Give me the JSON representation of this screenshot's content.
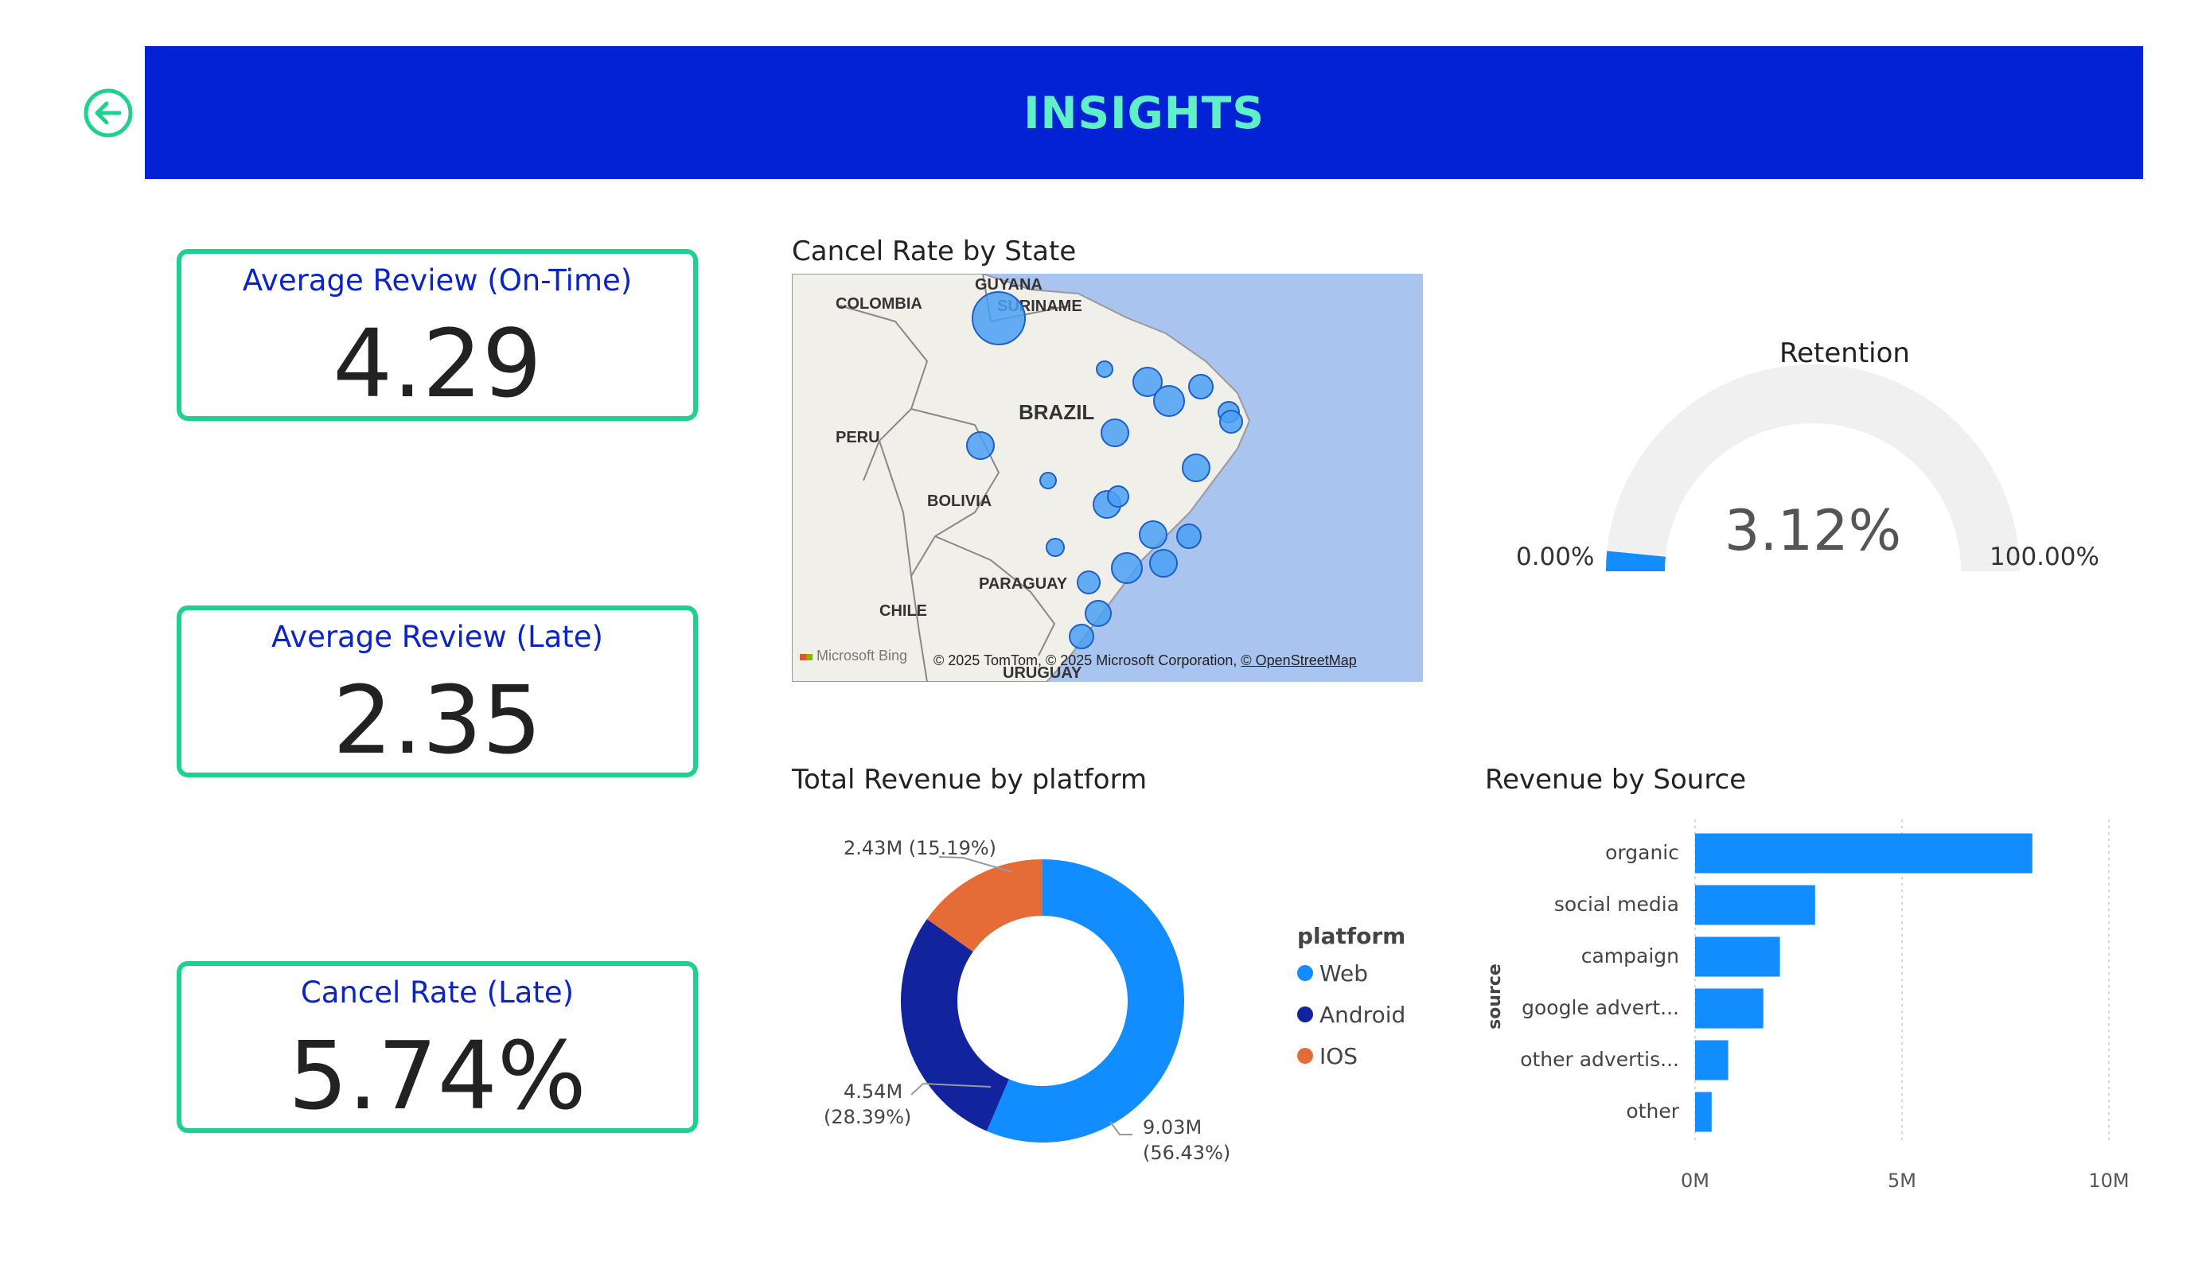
{
  "header": {
    "title": "INSIGHTS",
    "back_icon": "arrow-left-circle-icon",
    "accent_color": "#5ff0c8",
    "bg_color": "#0222d3"
  },
  "cards": [
    {
      "title": "Average Review (On-Time)",
      "value": "4.29"
    },
    {
      "title": "Average Review (Late)",
      "value": "2.35"
    },
    {
      "title": "Cancel Rate (Late)",
      "value": "5.74%"
    }
  ],
  "map": {
    "title": "Cancel Rate by State",
    "labels": [
      "GUYANA",
      "SURINAME",
      "COLOMBIA",
      "BRAZIL",
      "PERU",
      "BOLIVIA",
      "PARAGUAY",
      "CHILE",
      "URUGUAY"
    ],
    "attribution": "© 2025 TomTom, © 2025 Microsoft Corporation,",
    "attribution_link": "© OpenStreetMap",
    "logo": "Microsoft Bing",
    "bubble_color": "#4aa0f5"
  },
  "gauge": {
    "title": "Retention",
    "value_label": "3.12%",
    "value": 3.12,
    "min_label": "0.00%",
    "max_label": "100.00%",
    "min": 0,
    "max": 100,
    "fill_color": "#118dff",
    "track_color": "#f0f0f0"
  },
  "donut": {
    "title": "Total Revenue by platform",
    "legend_title": "platform",
    "slices": [
      {
        "name": "Web",
        "value": 9.03,
        "pct": 56.43,
        "label": "9.03M",
        "pct_label": "(56.43%)",
        "color": "#118dff"
      },
      {
        "name": "Android",
        "value": 4.54,
        "pct": 28.39,
        "label": "4.54M",
        "pct_label": "(28.39%)",
        "color": "#12239e"
      },
      {
        "name": "IOS",
        "value": 2.43,
        "pct": 15.19,
        "label": "2.43M (15.19%)",
        "pct_label": "",
        "color": "#e66c37"
      }
    ]
  },
  "chart_data": {
    "type": "bar",
    "title": "Revenue by Source",
    "xlabel": "",
    "ylabel": "source",
    "categories": [
      "organic",
      "social media",
      "campaign",
      "google advert...",
      "other advertis...",
      "other"
    ],
    "values": [
      8.15,
      2.9,
      2.05,
      1.65,
      0.8,
      0.4
    ],
    "xlim": [
      0,
      10
    ],
    "ticks": [
      "0M",
      "5M",
      "10M"
    ],
    "grid": true,
    "color": "#118dff"
  }
}
